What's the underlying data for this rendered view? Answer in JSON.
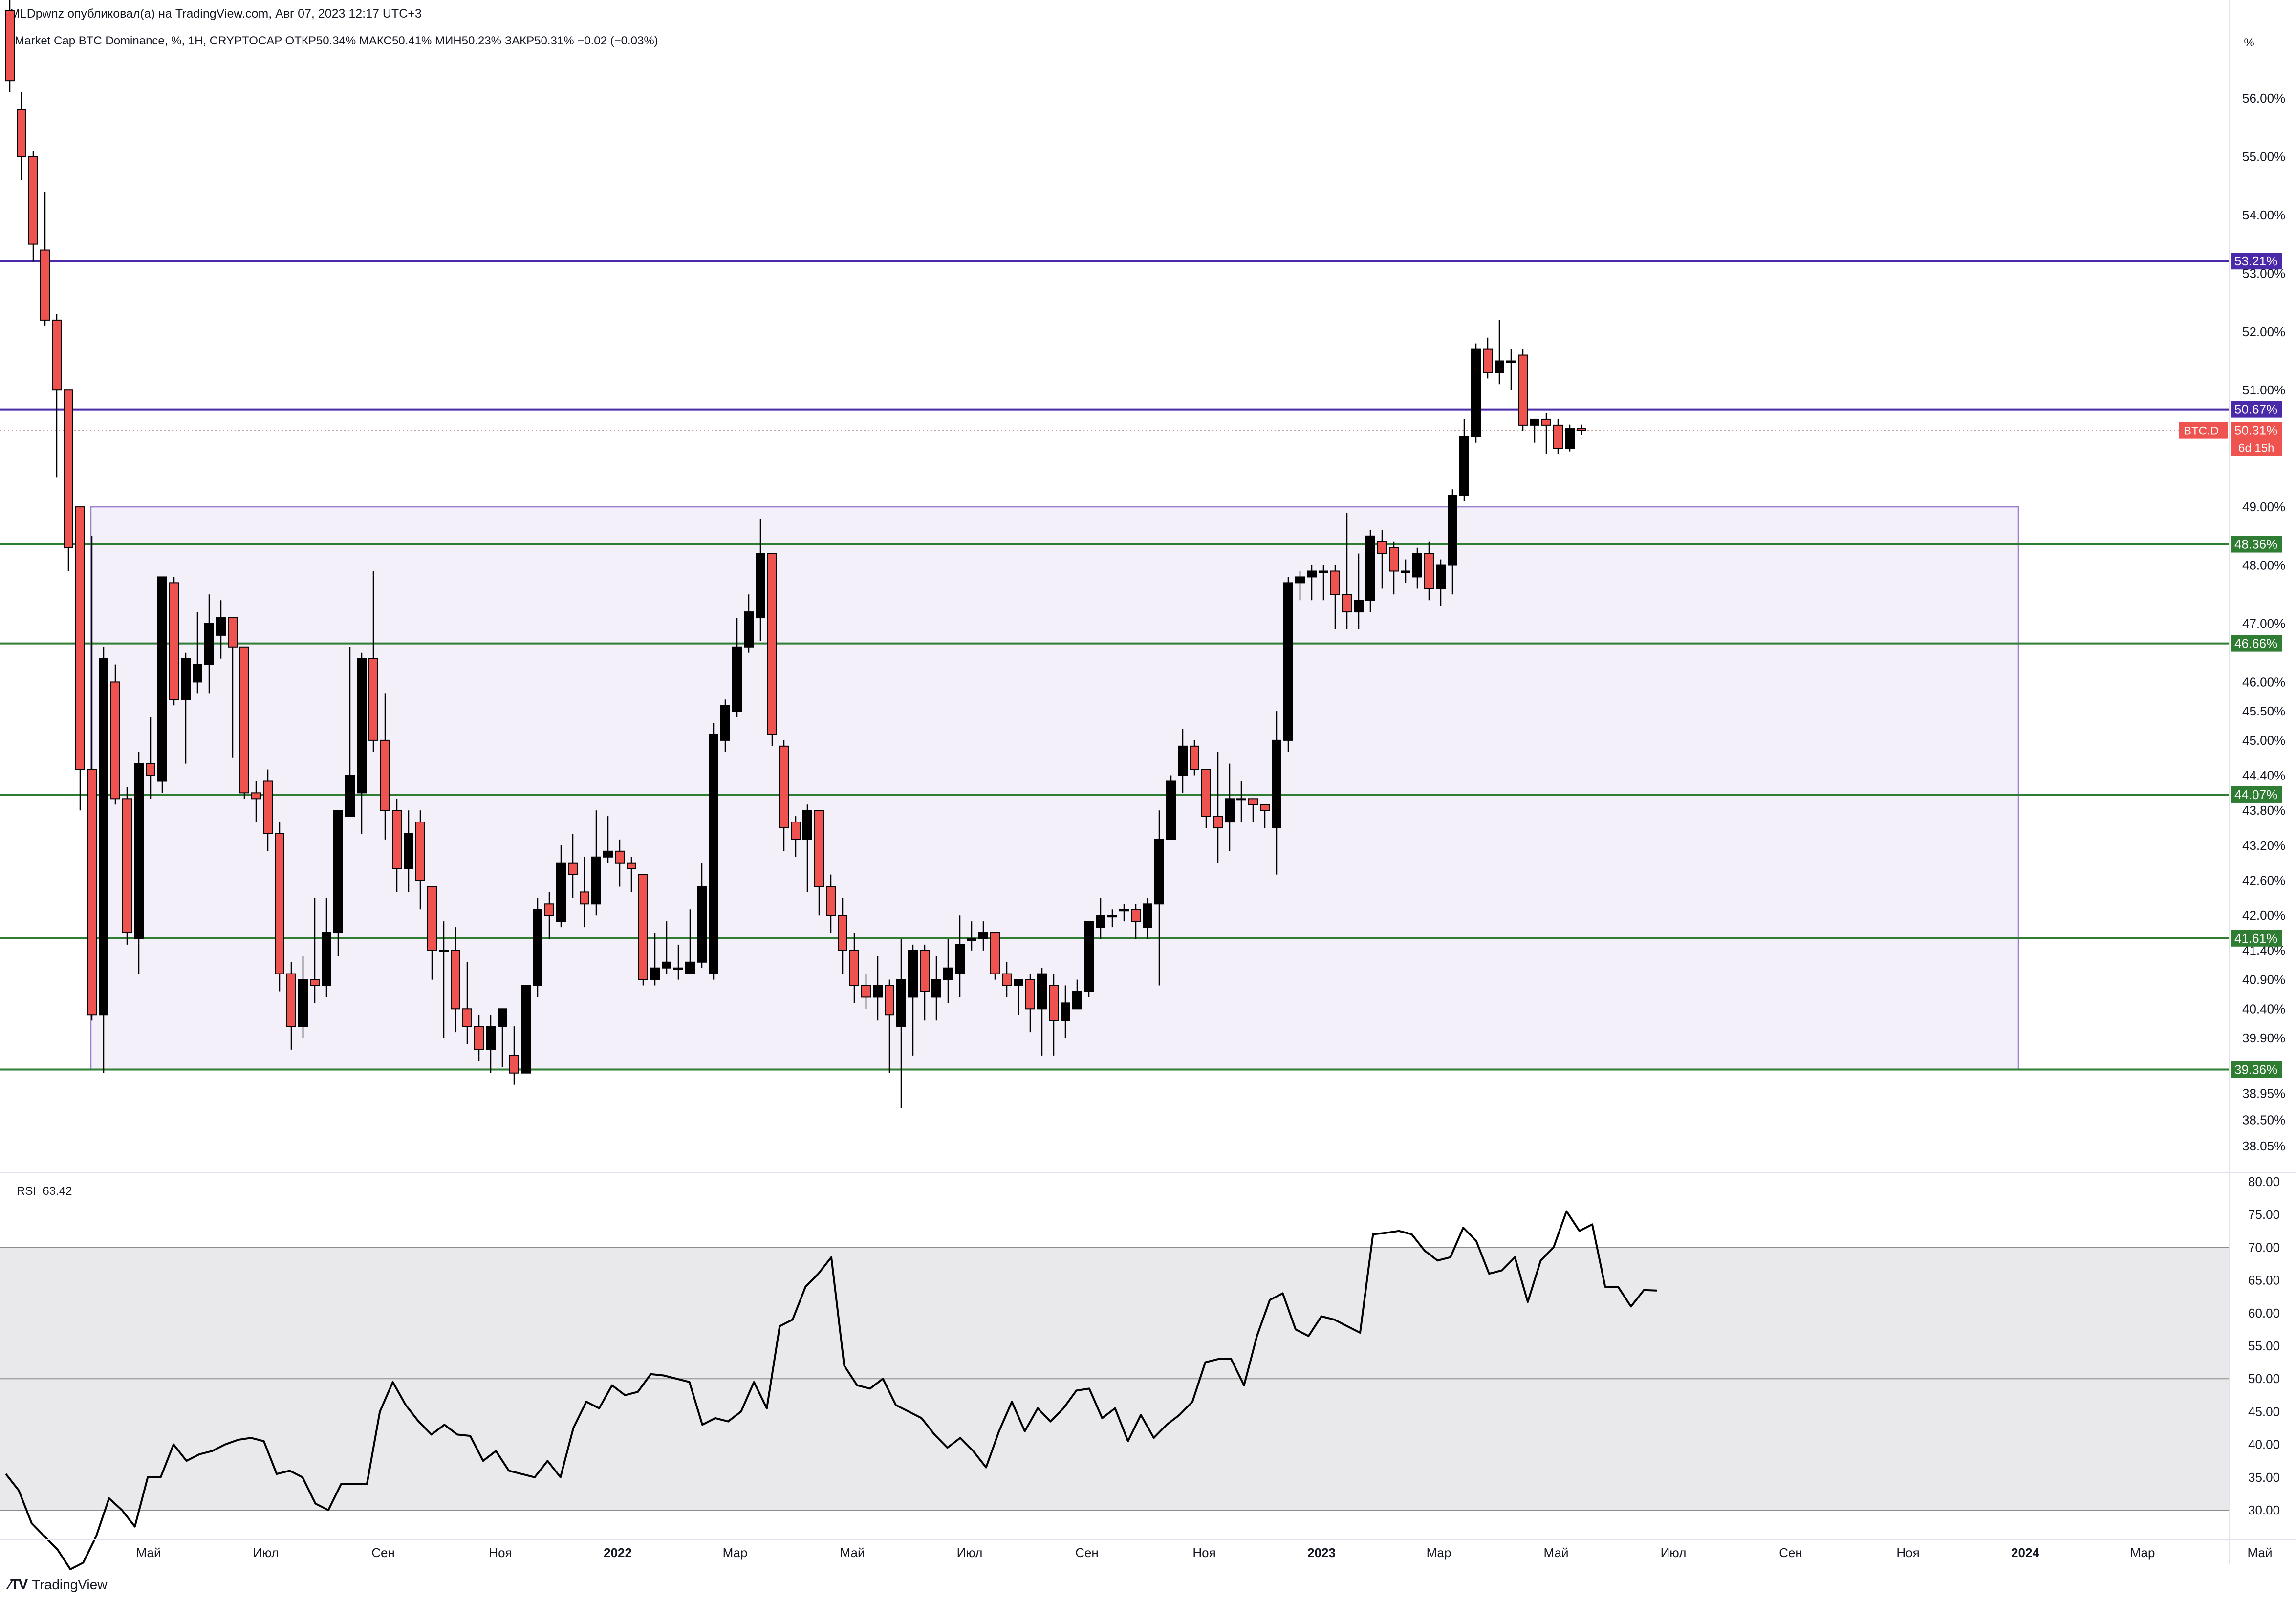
{
  "header": {
    "publisher": "MLDpwnz опубликовал(а) на TradingView.com, Авг 07, 2023 12:17 UTC+3",
    "legend": "Market Cap BTC Dominance, %, 1Н, CRYPTOCAP  ОТКР50.34%  МАКС50.41%  МИН50.23%  ЗАКР50.31%  −0.02 (−0.03%)"
  },
  "scale_mode_label": "%",
  "footer": {
    "logo_text": "TradingView",
    "logo_icon": "tradingview-logo-icon"
  },
  "chart_data": [
    {
      "type": "candlestick",
      "symbol": "BTC.D",
      "title": "Market Cap BTC Dominance, %, 1Н, CRYPTOCAP",
      "last_ohlc": {
        "open": "50.34%",
        "high": "50.41%",
        "low": "50.23%",
        "close": "50.31%",
        "change": "−0.02 (−0.03%)"
      },
      "ylim": [
        37.6,
        57.2
      ],
      "y_ticks": [
        "56.00%",
        "55.00%",
        "54.00%",
        "53.00%",
        "52.00%",
        "51.00%",
        "49.00%",
        "48.00%",
        "47.00%",
        "46.00%",
        "45.50%",
        "45.00%",
        "44.40%",
        "43.80%",
        "43.20%",
        "42.60%",
        "42.00%",
        "41.40%",
        "40.90%",
        "40.40%",
        "39.90%",
        "38.95%",
        "38.50%",
        "38.05%"
      ],
      "x_ticks": [
        "Май",
        "Июл",
        "Сен",
        "Ноя",
        "2022",
        "Мар",
        "Май",
        "Июл",
        "Сен",
        "Ноя",
        "2023",
        "Мар",
        "Май",
        "Июл",
        "Сен",
        "Ноя",
        "2024",
        "Мар",
        "Май"
      ],
      "x_tick_index": [
        6,
        16,
        26,
        36,
        46,
        56,
        66,
        76,
        86,
        96,
        106,
        116,
        126,
        136,
        146,
        156,
        166,
        176,
        186
      ],
      "candles": [
        [
          57.5,
          56.3,
          57.8,
          56.1
        ],
        [
          55.8,
          55.0,
          56.1,
          54.6
        ],
        [
          55.0,
          53.5,
          55.1,
          53.2
        ],
        [
          53.4,
          52.2,
          54.4,
          52.1
        ],
        [
          52.2,
          51.0,
          52.3,
          49.5
        ],
        [
          51.0,
          48.3,
          51.0,
          47.9
        ],
        [
          49.0,
          44.5,
          49.0,
          43.8
        ],
        [
          44.5,
          40.3,
          48.5,
          40.2
        ],
        [
          40.3,
          46.4,
          46.6,
          39.3
        ],
        [
          46.0,
          44.0,
          46.3,
          43.9
        ],
        [
          44.0,
          41.7,
          44.2,
          41.5
        ],
        [
          41.6,
          44.6,
          44.8,
          41.0
        ],
        [
          44.6,
          44.4,
          45.4,
          44.0
        ],
        [
          44.3,
          47.8,
          47.8,
          44.1
        ],
        [
          47.7,
          45.7,
          47.8,
          45.6
        ],
        [
          45.7,
          46.4,
          46.5,
          44.6
        ],
        [
          46.0,
          46.3,
          47.2,
          45.8
        ],
        [
          46.3,
          47.0,
          47.5,
          45.8
        ],
        [
          46.8,
          47.1,
          47.4,
          46.4
        ],
        [
          47.1,
          46.6,
          47.1,
          44.7
        ],
        [
          46.6,
          44.1,
          46.6,
          44.0
        ],
        [
          44.1,
          44.0,
          44.3,
          43.6
        ],
        [
          44.3,
          43.4,
          44.5,
          43.1
        ],
        [
          43.4,
          41.0,
          43.6,
          40.7
        ],
        [
          41.0,
          40.1,
          41.2,
          39.7
        ],
        [
          40.1,
          40.9,
          41.3,
          39.9
        ],
        [
          40.9,
          40.8,
          42.3,
          40.5
        ],
        [
          40.8,
          41.7,
          42.3,
          40.6
        ],
        [
          41.7,
          43.8,
          43.8,
          41.3
        ],
        [
          43.7,
          44.4,
          46.6,
          43.7
        ],
        [
          44.1,
          46.4,
          46.5,
          43.4
        ],
        [
          46.4,
          45.0,
          47.9,
          44.8
        ],
        [
          45.0,
          43.8,
          45.8,
          43.3
        ],
        [
          43.8,
          42.8,
          44.0,
          42.4
        ],
        [
          42.8,
          43.4,
          43.8,
          42.4
        ],
        [
          43.6,
          42.6,
          43.8,
          42.1
        ],
        [
          42.5,
          41.4,
          42.5,
          40.9
        ],
        [
          41.4,
          41.4,
          41.9,
          39.9
        ],
        [
          41.4,
          40.4,
          41.8,
          40.0
        ],
        [
          40.4,
          40.1,
          41.2,
          39.8
        ],
        [
          40.1,
          39.7,
          40.3,
          39.5
        ],
        [
          39.7,
          40.1,
          40.3,
          39.3
        ],
        [
          40.1,
          40.4,
          40.4,
          39.4
        ],
        [
          39.6,
          39.3,
          40.1,
          39.1
        ],
        [
          39.3,
          40.8,
          40.8,
          39.3
        ],
        [
          40.8,
          42.1,
          42.3,
          40.6
        ],
        [
          42.2,
          42.0,
          42.4,
          41.6
        ],
        [
          41.9,
          42.9,
          43.2,
          41.8
        ],
        [
          42.9,
          42.7,
          43.4,
          42.3
        ],
        [
          42.4,
          42.2,
          43.0,
          41.8
        ],
        [
          42.2,
          43.0,
          43.8,
          42.0
        ],
        [
          43.0,
          43.1,
          43.7,
          42.9
        ],
        [
          43.1,
          42.9,
          43.3,
          42.5
        ],
        [
          42.9,
          42.8,
          43.0,
          42.4
        ],
        [
          42.7,
          40.9,
          42.7,
          40.8
        ],
        [
          40.9,
          41.1,
          41.7,
          40.8
        ],
        [
          41.1,
          41.2,
          41.9,
          41.0
        ],
        [
          41.1,
          41.1,
          41.5,
          40.9
        ],
        [
          41.0,
          41.2,
          42.1,
          41.0
        ],
        [
          41.2,
          42.5,
          42.9,
          41.1
        ],
        [
          41.0,
          45.1,
          45.3,
          40.9
        ],
        [
          45.0,
          45.6,
          45.7,
          44.8
        ],
        [
          45.5,
          46.6,
          47.1,
          45.4
        ],
        [
          46.6,
          47.2,
          47.5,
          46.5
        ],
        [
          47.1,
          48.2,
          48.8,
          46.7
        ],
        [
          48.2,
          45.1,
          48.2,
          44.9
        ],
        [
          44.9,
          43.5,
          45.0,
          43.1
        ],
        [
          43.6,
          43.3,
          43.7,
          43.0
        ],
        [
          43.3,
          43.8,
          43.9,
          42.4
        ],
        [
          43.8,
          42.5,
          43.8,
          42.0
        ],
        [
          42.5,
          42.0,
          42.7,
          41.7
        ],
        [
          42.0,
          41.4,
          42.3,
          41.0
        ],
        [
          41.4,
          40.8,
          41.7,
          40.5
        ],
        [
          40.8,
          40.6,
          41.0,
          40.4
        ],
        [
          40.6,
          40.8,
          41.3,
          40.2
        ],
        [
          40.8,
          40.3,
          40.9,
          39.3
        ],
        [
          40.1,
          40.9,
          41.6,
          38.7
        ],
        [
          40.6,
          41.4,
          41.5,
          39.6
        ],
        [
          41.4,
          40.7,
          41.5,
          40.2
        ],
        [
          40.6,
          40.9,
          41.3,
          40.2
        ],
        [
          40.9,
          41.1,
          41.6,
          40.5
        ],
        [
          41.0,
          41.5,
          42.0,
          40.6
        ],
        [
          41.6,
          41.6,
          41.9,
          41.4
        ],
        [
          41.6,
          41.7,
          41.9,
          41.4
        ],
        [
          41.7,
          41.0,
          41.7,
          40.9
        ],
        [
          41.0,
          40.8,
          41.2,
          40.6
        ],
        [
          40.8,
          40.9,
          40.9,
          40.3
        ],
        [
          40.9,
          40.4,
          41.0,
          40.0
        ],
        [
          40.4,
          41.0,
          41.1,
          39.6
        ],
        [
          40.8,
          40.2,
          41.0,
          39.6
        ],
        [
          40.2,
          40.5,
          40.8,
          39.9
        ],
        [
          40.4,
          40.7,
          40.9,
          40.4
        ],
        [
          40.7,
          41.9,
          41.9,
          40.6
        ],
        [
          41.8,
          42.0,
          42.3,
          41.6
        ],
        [
          42.0,
          42.0,
          42.1,
          41.8
        ],
        [
          42.1,
          42.1,
          42.2,
          41.9
        ],
        [
          42.1,
          41.9,
          42.2,
          41.6
        ],
        [
          41.8,
          42.2,
          42.3,
          41.6
        ],
        [
          42.2,
          43.3,
          43.8,
          40.8
        ],
        [
          43.3,
          44.3,
          44.4,
          43.3
        ],
        [
          44.4,
          44.9,
          45.2,
          44.1
        ],
        [
          44.9,
          44.5,
          45.0,
          44.4
        ],
        [
          44.5,
          43.7,
          44.5,
          43.5
        ],
        [
          43.7,
          43.5,
          44.8,
          42.9
        ],
        [
          43.6,
          44.0,
          44.6,
          43.1
        ],
        [
          44.0,
          44.0,
          44.3,
          43.6
        ],
        [
          44.0,
          43.9,
          44.0,
          43.6
        ],
        [
          43.9,
          43.8,
          43.9,
          43.5
        ],
        [
          43.5,
          45.0,
          45.5,
          42.7
        ],
        [
          45.0,
          47.7,
          47.8,
          44.8
        ],
        [
          47.7,
          47.8,
          47.9,
          47.4
        ],
        [
          47.8,
          47.9,
          48.0,
          47.4
        ],
        [
          47.9,
          47.9,
          48.0,
          47.4
        ],
        [
          47.9,
          47.5,
          48.0,
          46.9
        ],
        [
          47.5,
          47.2,
          48.9,
          46.9
        ],
        [
          47.2,
          47.4,
          48.2,
          46.9
        ],
        [
          47.4,
          48.5,
          48.6,
          47.2
        ],
        [
          48.4,
          48.2,
          48.6,
          47.6
        ],
        [
          48.3,
          47.9,
          48.4,
          47.5
        ],
        [
          47.9,
          47.9,
          48.1,
          47.7
        ],
        [
          47.8,
          48.2,
          48.3,
          47.6
        ],
        [
          48.2,
          47.6,
          48.4,
          47.4
        ],
        [
          47.6,
          48.0,
          48.1,
          47.3
        ],
        [
          48.0,
          49.2,
          49.3,
          47.5
        ],
        [
          49.2,
          50.2,
          50.5,
          49.1
        ],
        [
          50.2,
          51.7,
          51.8,
          50.1
        ],
        [
          51.7,
          51.3,
          51.9,
          51.2
        ],
        [
          51.3,
          51.5,
          52.2,
          51.1
        ],
        [
          51.5,
          51.5,
          51.7,
          51.0
        ],
        [
          51.6,
          50.4,
          51.7,
          50.3
        ],
        [
          50.4,
          50.5,
          50.5,
          50.1
        ],
        [
          50.5,
          50.4,
          50.6,
          49.9
        ],
        [
          50.4,
          50.0,
          50.5,
          49.9
        ],
        [
          50.0,
          50.34,
          50.41,
          49.95
        ],
        [
          50.34,
          50.31,
          50.41,
          50.23
        ]
      ],
      "x_ticks_label_note": "",
      "box": {
        "top": 49.0,
        "bottom": 39.36,
        "x_start_index": 9,
        "x_end_index": 175
      },
      "horizontal_lines": [
        {
          "value": 53.21,
          "label": "53.21%",
          "color": "#4a2aa8"
        },
        {
          "value": 50.67,
          "label": "50.67%",
          "color": "#4a2aa8"
        },
        {
          "value": 48.36,
          "label": "48.36%",
          "color": "#2e7d32"
        },
        {
          "value": 46.66,
          "label": "46.66%",
          "color": "#2e7d32"
        },
        {
          "value": 44.07,
          "label": "44.07%",
          "color": "#2e7d32"
        },
        {
          "value": 41.61,
          "label": "41.61%",
          "color": "#2e7d32"
        },
        {
          "value": 39.36,
          "label": "39.36%",
          "color": "#2e7d32"
        }
      ],
      "current_price": {
        "value": 50.31,
        "symbol_label": "BTC.D",
        "price_label": "50.31%",
        "countdown": "6d 15h"
      },
      "colors": {
        "up": "#000000",
        "down": "#ef5350",
        "box_fill": "#f3f0fa",
        "box_stroke": "#9b7fd0"
      }
    },
    {
      "type": "line",
      "title": "RSI",
      "value_label": "63.42",
      "ylim": [
        26,
        81
      ],
      "y_ticks": [
        "80.00",
        "75.00",
        "70.00",
        "65.00",
        "60.00",
        "55.00",
        "50.00",
        "45.00",
        "40.00",
        "35.00",
        "30.00"
      ],
      "bands": {
        "upper": 70,
        "middle": 50,
        "lower": 30,
        "fill": "#e9e9eb"
      },
      "values": [
        35.5,
        33,
        28,
        26,
        24,
        21,
        22,
        26,
        31.8,
        30,
        27.5,
        35,
        35,
        40,
        37.5,
        38.5,
        39,
        40,
        40.7,
        41,
        40.5,
        35.5,
        36,
        35,
        31,
        30,
        34,
        34,
        34,
        45,
        49.5,
        46,
        43.5,
        41.5,
        43,
        41.5,
        41.3,
        37.5,
        39,
        36,
        35.5,
        35,
        37.5,
        35,
        42.5,
        46.5,
        45.5,
        49,
        47.5,
        48,
        50.7,
        50.5,
        50,
        49.5,
        43,
        44,
        43.5,
        45,
        49.5,
        45.5,
        58,
        59,
        64,
        66,
        68.5,
        52,
        49,
        48.5,
        50,
        46,
        45,
        44,
        41.5,
        39.5,
        41,
        39,
        36.5,
        42,
        46.5,
        42,
        45.5,
        43.5,
        45.5,
        48.2,
        48.5,
        44,
        45.5,
        40.5,
        44.5,
        41,
        43,
        44.5,
        46.5,
        52.5,
        53,
        53,
        49,
        56.5,
        62,
        63,
        57.5,
        56.5,
        59.5,
        59,
        58,
        57,
        72,
        72.2,
        72.5,
        72,
        69.5,
        68,
        68.5,
        73,
        71,
        66,
        66.5,
        68.5,
        61.7,
        68,
        70,
        75.5,
        72.5,
        73.5,
        64,
        64,
        61,
        63.5,
        63.42
      ],
      "x_ticks": [
        "Май",
        "Июл",
        "Сен",
        "Ноя",
        "2022",
        "Мар",
        "Май",
        "Июл",
        "Сен",
        "Ноя",
        "2023",
        "Мар",
        "Май",
        "Июл",
        "Сен",
        "Ноя",
        "2024",
        "Мар",
        "Май"
      ]
    }
  ]
}
